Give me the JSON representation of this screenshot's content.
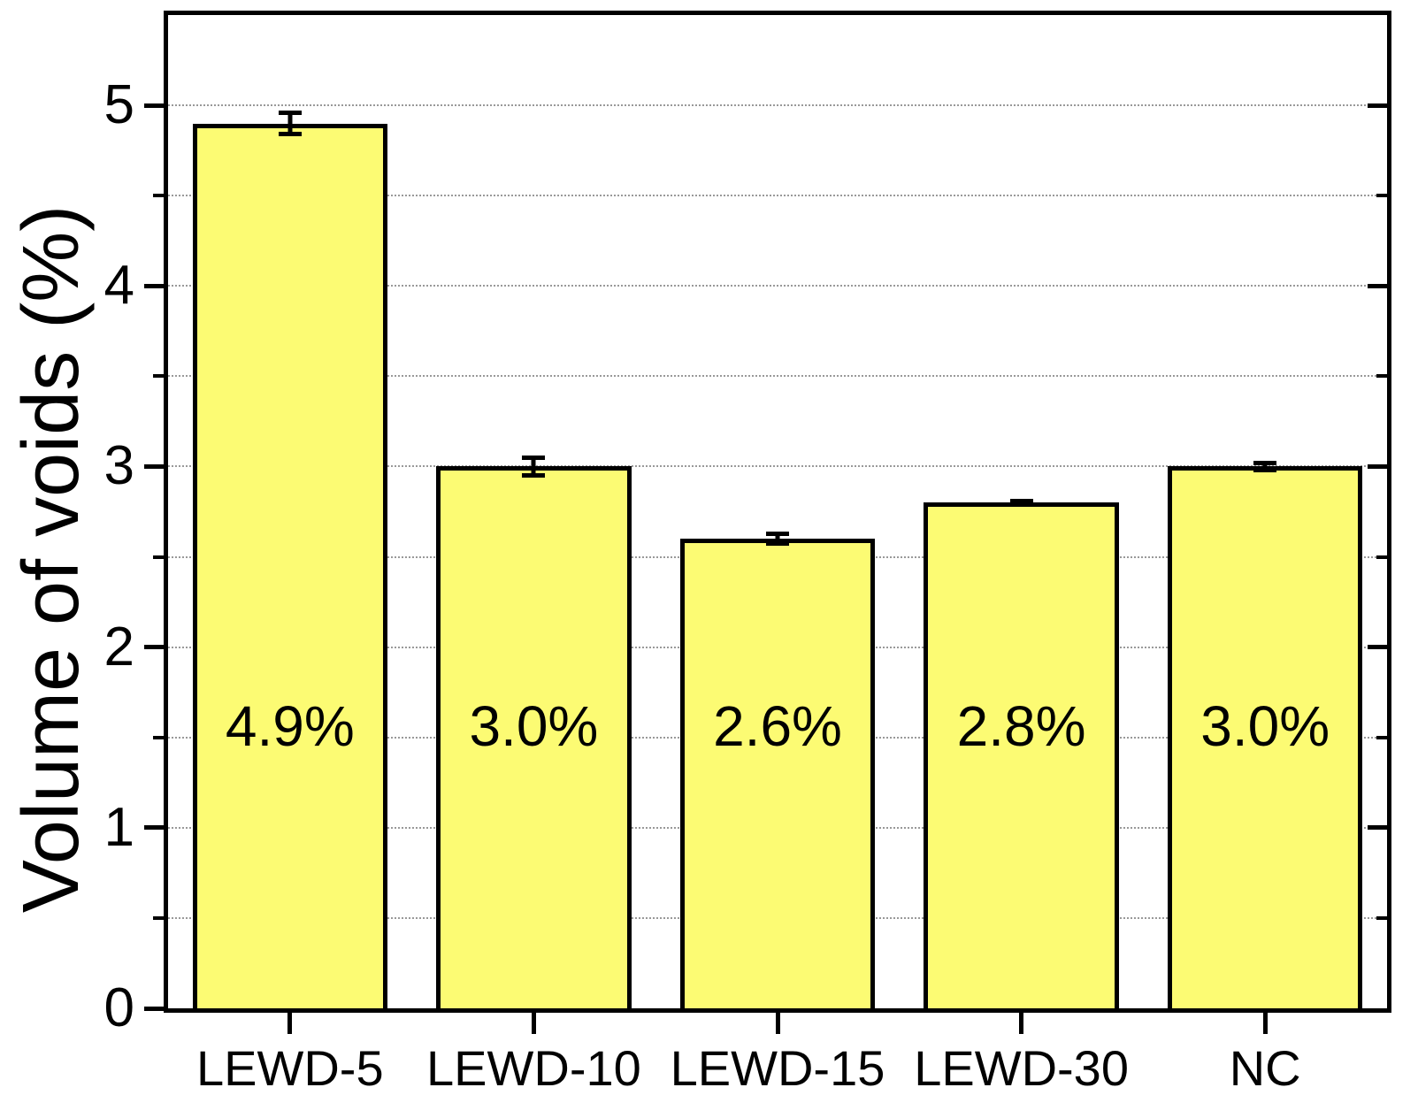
{
  "chart_data": {
    "type": "bar",
    "title": "",
    "categories": [
      "LEWD-5",
      "LEWD-10",
      "LEWD-15",
      "LEWD-30",
      "NC"
    ],
    "values": [
      4.9,
      3.0,
      2.6,
      2.8,
      3.0
    ],
    "errors": [
      0.07,
      0.06,
      0.04,
      0.02,
      0.03
    ],
    "bar_labels": [
      "4.9%",
      "3.0%",
      "2.6%",
      "2.8%",
      "3.0%"
    ],
    "xlabel": "",
    "ylabel": "Volume of voids (%)",
    "ylim": [
      0,
      5.5
    ],
    "yticks_major": [
      0,
      1,
      2,
      3,
      4,
      5
    ],
    "ytick_labels": [
      "0",
      "1",
      "2",
      "3",
      "4",
      "5"
    ],
    "yticks_minor": [
      0.5,
      1.5,
      2.5,
      3.5,
      4.5,
      5.5
    ],
    "gridlines_every": 0.5,
    "grid_style": "dotted horizontal",
    "legend_position": "none",
    "bar_value_label_y": 1.56,
    "colors": {
      "bar_fill": "#fcfb73",
      "bar_border": "#000000",
      "axis": "#000000",
      "gridline": "#999999",
      "background": "#ffffff"
    }
  }
}
